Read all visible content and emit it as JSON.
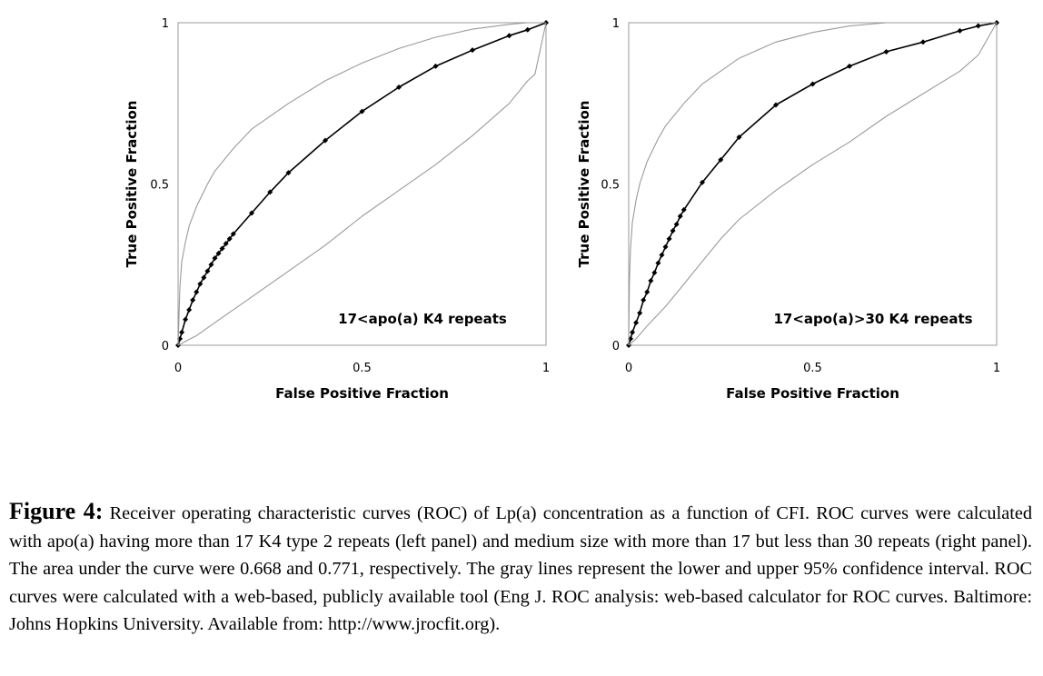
{
  "figure": {
    "label": "Figure 4:",
    "caption": "Receiver operating characteristic curves (ROC) of Lp(a) concentration as a function of CFI. ROC curves were calculated with apo(a) having more than 17 K4 type 2 repeats (left panel) and medium size with more than 17 but less than 30 repeats (right panel). The area under the curve were 0.668 and 0.771, respectively. The gray lines represent the lower and upper 95% confidence interval. ROC curves were calculated with a web-based, publicly available tool (Eng J. ROC analysis: web-based calculator for ROC curves. Baltimore: Johns Hopkins University. Available from: http://www.jrocfit.org)."
  },
  "colors": {
    "roc": "#000000",
    "ci": "#9a9a9a",
    "frame": "#9a9a9a"
  },
  "chart_data": [
    {
      "type": "line",
      "panel": "left",
      "annotation": "17<apo(a) K4 repeats",
      "xlabel": "False Positive Fraction",
      "ylabel": "True Positive Fraction",
      "xlim": [
        0,
        1
      ],
      "ylim": [
        0,
        1
      ],
      "xticks": [
        "0",
        "0.5",
        "1"
      ],
      "yticks": [
        "0",
        "0.5",
        "1"
      ],
      "series": [
        {
          "role": "roc",
          "markers": true,
          "x": [
            0,
            0.005,
            0.01,
            0.02,
            0.03,
            0.04,
            0.05,
            0.06,
            0.07,
            0.08,
            0.09,
            0.1,
            0.11,
            0.12,
            0.13,
            0.14,
            0.15,
            0.2,
            0.25,
            0.3,
            0.4,
            0.5,
            0.6,
            0.7,
            0.8,
            0.9,
            0.95,
            1.0
          ],
          "y": [
            0,
            0.02,
            0.04,
            0.08,
            0.11,
            0.14,
            0.165,
            0.19,
            0.21,
            0.23,
            0.25,
            0.27,
            0.285,
            0.3,
            0.315,
            0.33,
            0.345,
            0.41,
            0.475,
            0.535,
            0.635,
            0.725,
            0.8,
            0.865,
            0.915,
            0.96,
            0.978,
            1.0
          ]
        },
        {
          "role": "upper 95% confidence",
          "markers": false,
          "x": [
            0,
            0.005,
            0.01,
            0.02,
            0.03,
            0.05,
            0.08,
            0.1,
            0.15,
            0.2,
            0.3,
            0.4,
            0.5,
            0.6,
            0.7,
            0.8,
            0.9,
            0.95,
            1.0
          ],
          "y": [
            0,
            0.18,
            0.26,
            0.32,
            0.37,
            0.43,
            0.5,
            0.54,
            0.61,
            0.67,
            0.75,
            0.82,
            0.875,
            0.92,
            0.955,
            0.98,
            0.995,
            1.0,
            1.0
          ]
        },
        {
          "role": "lower 95% confidence",
          "markers": false,
          "x": [
            0,
            0.05,
            0.1,
            0.2,
            0.3,
            0.4,
            0.5,
            0.6,
            0.7,
            0.8,
            0.9,
            0.95,
            0.97,
            1.0
          ],
          "y": [
            0,
            0.03,
            0.07,
            0.15,
            0.23,
            0.31,
            0.4,
            0.48,
            0.56,
            0.65,
            0.75,
            0.82,
            0.84,
            1.0
          ]
        }
      ]
    },
    {
      "type": "line",
      "panel": "right",
      "annotation": "17<apo(a)>30 K4 repeats",
      "xlabel": "False Positive Fraction",
      "ylabel": "True Positive Fraction",
      "xlim": [
        0,
        1
      ],
      "ylim": [
        0,
        1
      ],
      "xticks": [
        "0",
        "0.5",
        "1"
      ],
      "yticks": [
        "0",
        "0.5",
        "1"
      ],
      "series": [
        {
          "role": "roc",
          "markers": true,
          "x": [
            0,
            0.005,
            0.01,
            0.02,
            0.03,
            0.04,
            0.05,
            0.06,
            0.07,
            0.08,
            0.09,
            0.1,
            0.11,
            0.12,
            0.13,
            0.14,
            0.15,
            0.2,
            0.25,
            0.3,
            0.4,
            0.5,
            0.6,
            0.7,
            0.8,
            0.9,
            0.95,
            1.0
          ],
          "y": [
            0,
            0.02,
            0.04,
            0.07,
            0.1,
            0.14,
            0.165,
            0.2,
            0.225,
            0.255,
            0.28,
            0.305,
            0.33,
            0.355,
            0.375,
            0.4,
            0.42,
            0.505,
            0.575,
            0.645,
            0.745,
            0.81,
            0.865,
            0.91,
            0.94,
            0.975,
            0.99,
            1.0
          ]
        },
        {
          "role": "upper 95% confidence",
          "markers": false,
          "x": [
            0,
            0.002,
            0.005,
            0.01,
            0.02,
            0.03,
            0.05,
            0.08,
            0.1,
            0.15,
            0.2,
            0.3,
            0.4,
            0.5,
            0.6,
            0.7,
            0.8,
            0.9,
            1.0
          ],
          "y": [
            0,
            0.2,
            0.3,
            0.38,
            0.45,
            0.5,
            0.57,
            0.64,
            0.68,
            0.75,
            0.81,
            0.89,
            0.94,
            0.97,
            0.99,
            1.0,
            1.0,
            1.0,
            1.0
          ]
        },
        {
          "role": "lower 95% confidence",
          "markers": false,
          "x": [
            0,
            0.02,
            0.05,
            0.1,
            0.15,
            0.2,
            0.25,
            0.3,
            0.4,
            0.5,
            0.6,
            0.7,
            0.8,
            0.9,
            0.95,
            1.0
          ],
          "y": [
            0,
            0.02,
            0.06,
            0.12,
            0.19,
            0.26,
            0.33,
            0.39,
            0.48,
            0.56,
            0.63,
            0.71,
            0.78,
            0.85,
            0.9,
            1.0
          ]
        }
      ]
    }
  ]
}
